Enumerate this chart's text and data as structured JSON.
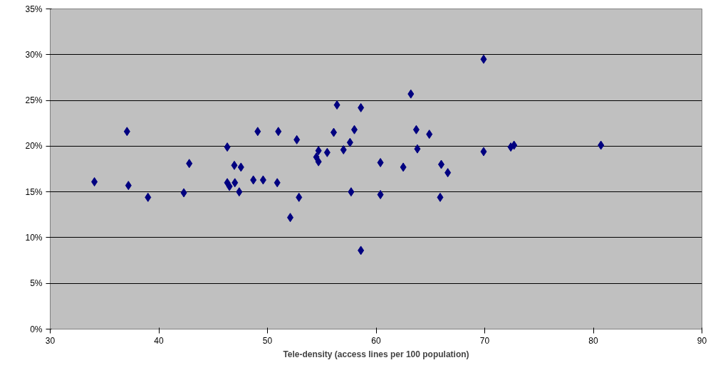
{
  "chart_data": {
    "type": "scatter",
    "xlabel": "Tele-density (access lines per 100 population)",
    "x": [
      34.07,
      37.07,
      37.2,
      39.0,
      42.3,
      42.8,
      46.3,
      46.3,
      46.5,
      47.0,
      46.95,
      47.56,
      47.4,
      48.7,
      49.1,
      49.6,
      51.0,
      50.9,
      52.7,
      52.9,
      52.1,
      54.7,
      54.5,
      54.7,
      55.5,
      56.1,
      56.4,
      57.0,
      57.6,
      58.0,
      57.7,
      58.6,
      58.6,
      60.4,
      60.4,
      62.5,
      63.2,
      63.7,
      63.8,
      64.9,
      66.0,
      66.6,
      65.9,
      69.9,
      69.9,
      72.4,
      72.7,
      80.7
    ],
    "series": [
      {
        "color": "#000080",
        "values": [
          16.1,
          21.6,
          15.7,
          14.4,
          14.9,
          18.1,
          19.9,
          16.0,
          15.6,
          16.0,
          17.9,
          17.7,
          15.0,
          16.3,
          21.6,
          16.3,
          21.6,
          16.0,
          20.7,
          14.4,
          12.2,
          19.5,
          18.8,
          18.3,
          19.3,
          21.5,
          24.5,
          19.6,
          20.4,
          21.8,
          15.0,
          24.2,
          8.6,
          18.2,
          14.7,
          17.7,
          25.7,
          21.8,
          19.7,
          21.3,
          18.0,
          17.1,
          14.4,
          29.5,
          19.4,
          19.9,
          20.1,
          20.1
        ]
      }
    ],
    "xlim": [
      30,
      90
    ],
    "xticks": [
      30,
      40,
      50,
      60,
      70,
      80,
      90
    ],
    "ylim": [
      0,
      35
    ],
    "yticks": [
      {
        "value": 0,
        "label": "0%"
      },
      {
        "value": 5,
        "label": "5%"
      },
      {
        "value": 10,
        "label": "10%"
      },
      {
        "value": 15,
        "label": "15%"
      },
      {
        "value": 20,
        "label": "20%"
      },
      {
        "value": 25,
        "label": "25%"
      },
      {
        "value": 30,
        "label": "30%"
      },
      {
        "value": 35,
        "label": "35%"
      }
    ],
    "grid": "y",
    "marker": "diamond"
  }
}
